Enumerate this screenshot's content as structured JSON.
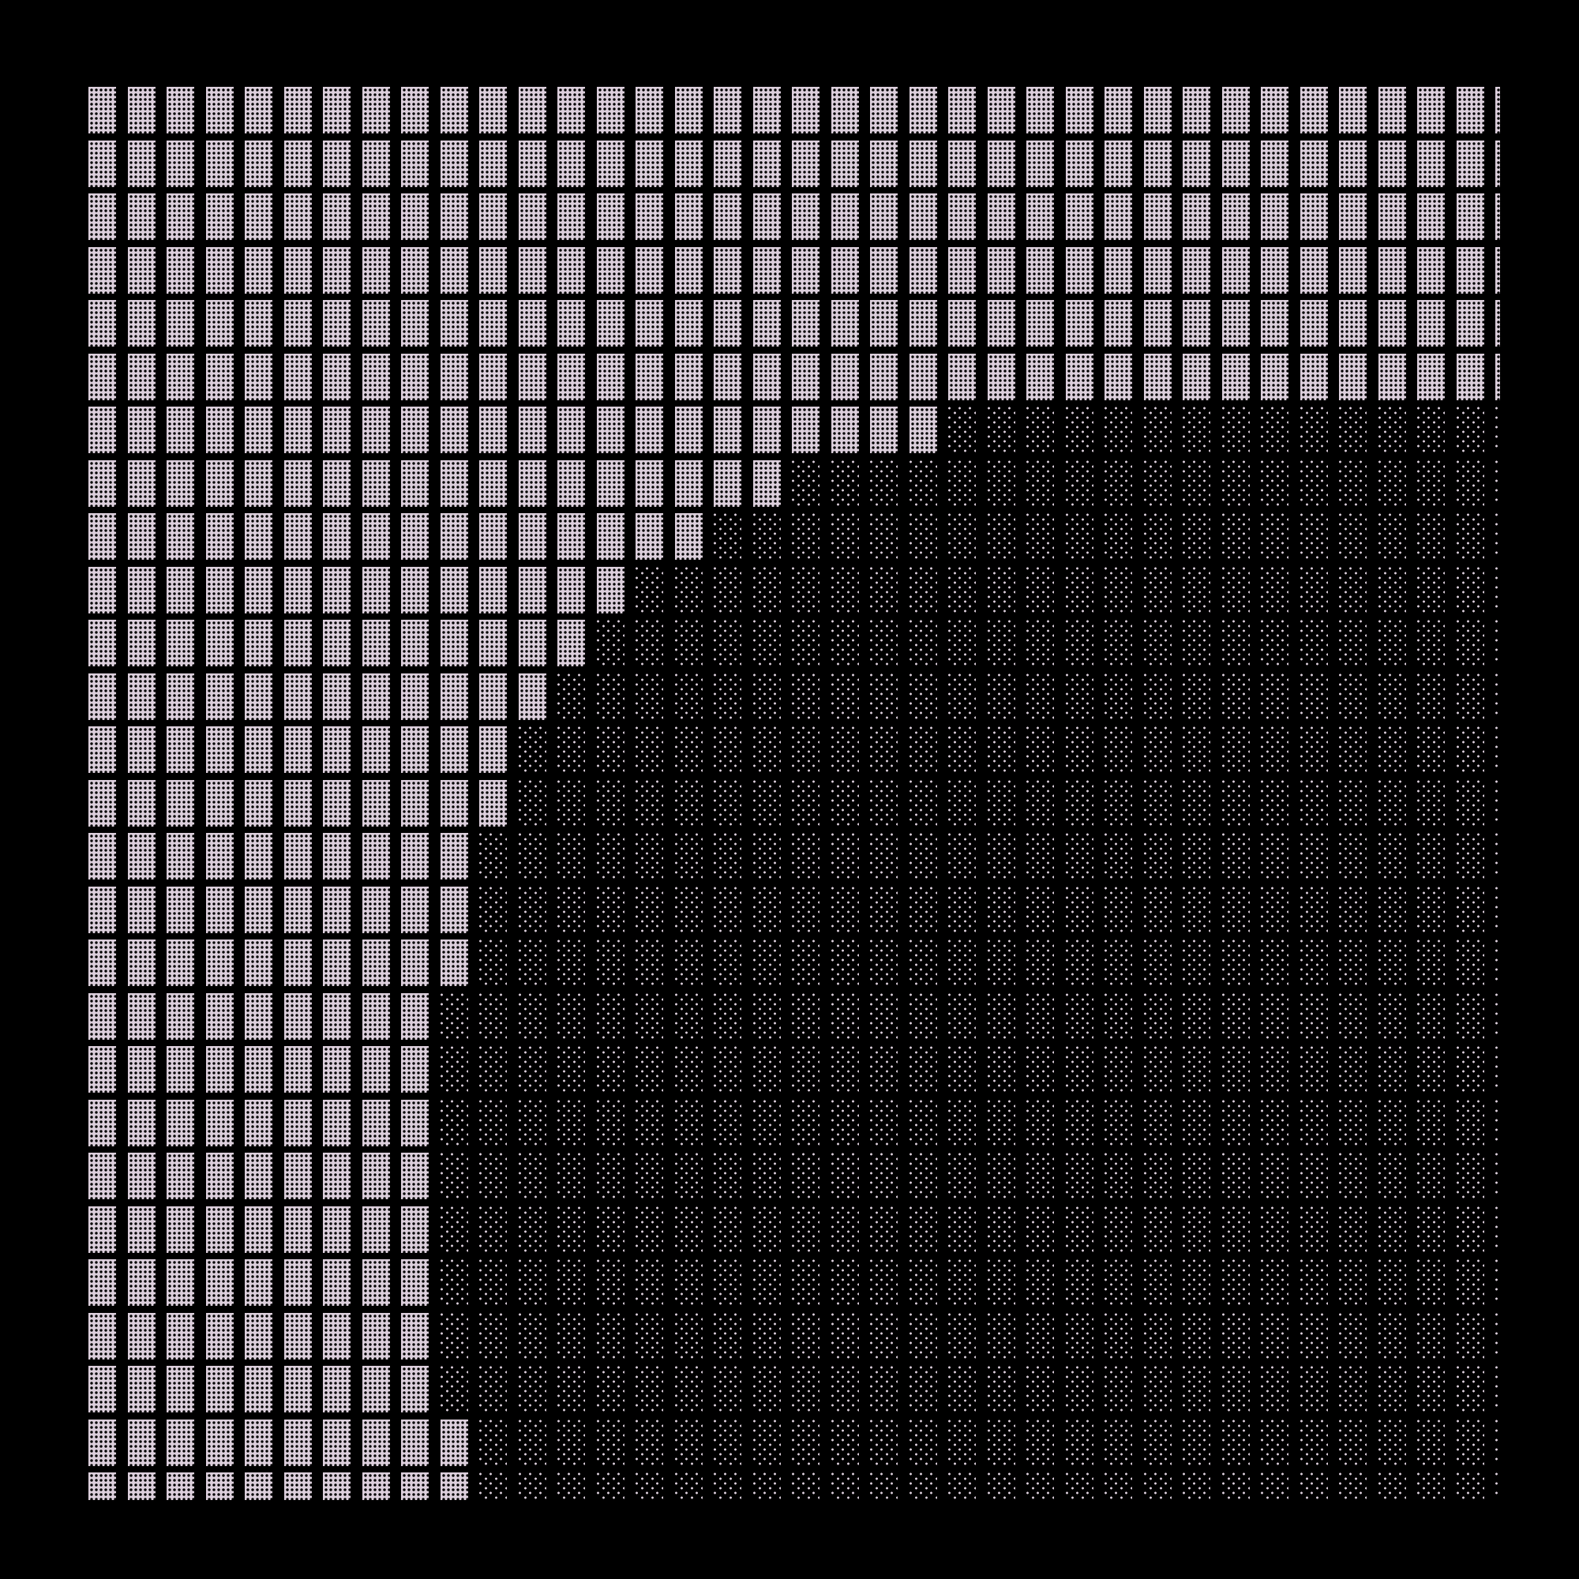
{
  "pattern": {
    "columns": 37,
    "rows": 27,
    "colors": {
      "background": "#000000",
      "cell": "#dccfdc",
      "dot": "#000000"
    },
    "light_cells_per_row": [
      37,
      37,
      37,
      37,
      37,
      37,
      22,
      18,
      16,
      14,
      13,
      12,
      11,
      11,
      10,
      10,
      10,
      9,
      9,
      9,
      9,
      9,
      9,
      9,
      9,
      10,
      10
    ]
  }
}
